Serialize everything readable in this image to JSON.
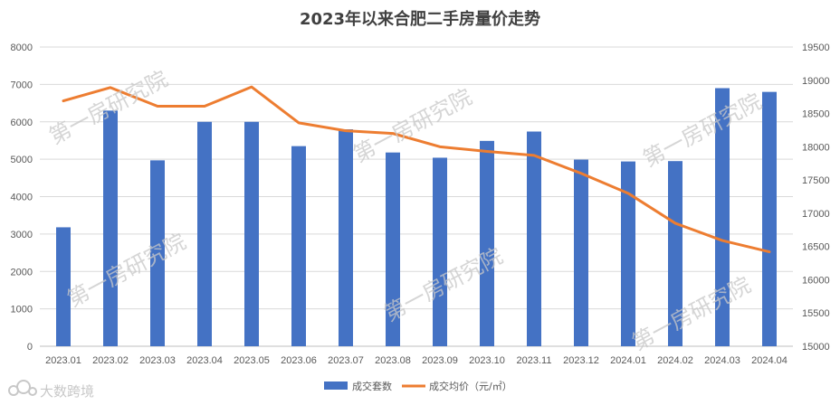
{
  "chart_data": {
    "type": "bar+line",
    "title": "2023年以来合肥二手房量价走势",
    "categories": [
      "2023.01",
      "2023.02",
      "2023.03",
      "2023.04",
      "2023.05",
      "2023.06",
      "2023.07",
      "2023.08",
      "2023.09",
      "2023.10",
      "2023.11",
      "2023.12",
      "2024.01",
      "2024.02",
      "2024.03",
      "2024.04"
    ],
    "series": [
      {
        "name": "成交套数",
        "type": "bar",
        "axis": "left",
        "color": "#4472C4",
        "values": [
          3180,
          6300,
          4970,
          6000,
          6000,
          5350,
          5800,
          5180,
          5040,
          5490,
          5740,
          4990,
          4940,
          4950,
          6900,
          6800
        ]
      },
      {
        "name": "成交均价（元/㎡）",
        "type": "line",
        "axis": "right",
        "color": "#ED7D31",
        "values": [
          18690,
          18890,
          18610,
          18610,
          18900,
          18360,
          18240,
          18200,
          18000,
          17930,
          17870,
          17600,
          17300,
          16850,
          16590,
          16420
        ]
      }
    ],
    "y_left": {
      "min": 0,
      "max": 8000,
      "ticks": [
        "0",
        "1000",
        "2000",
        "3000",
        "4000",
        "5000",
        "6000",
        "7000",
        "8000"
      ]
    },
    "y_right": {
      "min": 15000,
      "max": 19500,
      "ticks": [
        "15000",
        "15500",
        "16000",
        "16500",
        "17000",
        "17500",
        "18000",
        "18500",
        "19000",
        "19500"
      ]
    },
    "grid": true,
    "legend_position": "bottom"
  },
  "watermark": {
    "text": "第一房研究院"
  },
  "logo": {
    "text": "大数跨境",
    "icon": "cloud-icon"
  }
}
